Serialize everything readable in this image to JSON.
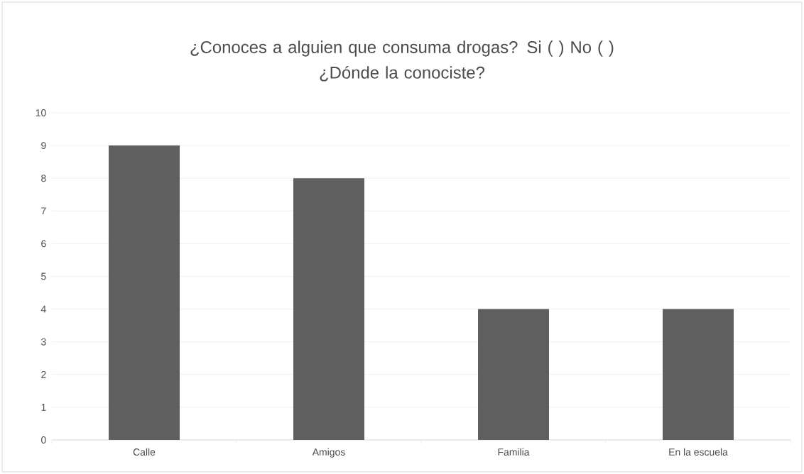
{
  "chart_data": {
    "type": "bar",
    "title": "¿Conoces a alguien que consuma drogas? Si ( ) No ( )\n¿Dónde la conociste?",
    "categories": [
      "Calle",
      "Amigos",
      "Familia",
      "En la escuela"
    ],
    "values": [
      9,
      8,
      4,
      4
    ],
    "color": "#5f5f5f",
    "ylim": [
      0,
      10
    ],
    "yticks": [
      0,
      1,
      2,
      3,
      4,
      5,
      6,
      7,
      8,
      9,
      10
    ],
    "grid": "y"
  }
}
